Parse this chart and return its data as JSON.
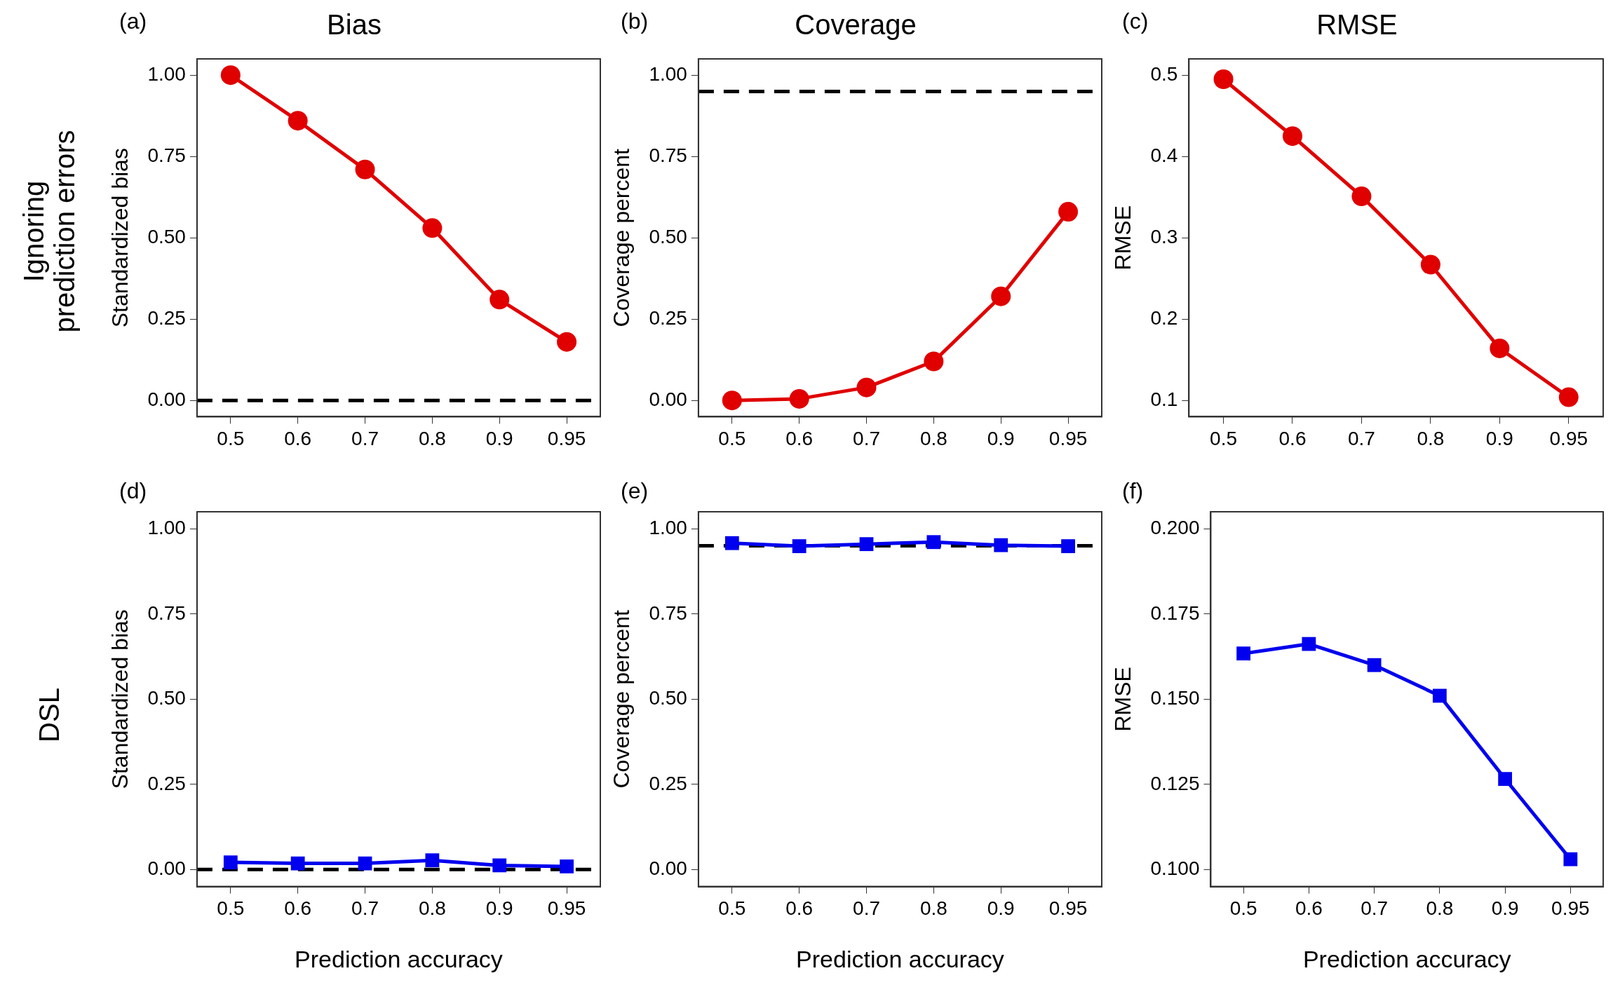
{
  "chart_data": [
    {
      "type": "line",
      "title": "Bias",
      "ylabel": "Standardized bias",
      "annotations": [
        "(a)",
        "Ignoring\nprediction errors"
      ],
      "categories": [
        "0.5",
        "0.6",
        "0.7",
        "0.8",
        "0.9",
        "0.95"
      ],
      "series": [
        {
          "color": "#e00000",
          "values": [
            1.0,
            0.86,
            0.71,
            0.53,
            0.31,
            0.18
          ]
        }
      ],
      "ylim": [
        -0.05,
        1.05
      ],
      "yticks": [
        {
          "value": 0,
          "label": "0.00"
        },
        {
          "value": 0.25,
          "label": "0.25"
        },
        {
          "value": 0.5,
          "label": "0.50"
        },
        {
          "value": 0.75,
          "label": "0.75"
        },
        {
          "value": 1,
          "label": "1.00"
        }
      ],
      "ref_lines": [
        {
          "axis": "y",
          "value": 0,
          "color": "#000000",
          "line_style": "dashed"
        }
      ],
      "grid": false,
      "legend": false,
      "marker": "circle",
      "line_style": "solid"
    },
    {
      "type": "line",
      "title": "Coverage",
      "ylabel": "Coverage percent",
      "annotations": [
        "(b)"
      ],
      "categories": [
        "0.5",
        "0.6",
        "0.7",
        "0.8",
        "0.9",
        "0.95"
      ],
      "series": [
        {
          "color": "#e00000",
          "values": [
            0.0,
            0.005,
            0.04,
            0.12,
            0.32,
            0.58
          ]
        }
      ],
      "ylim": [
        -0.05,
        1.05
      ],
      "yticks": [
        {
          "value": 0,
          "label": "0.00"
        },
        {
          "value": 0.25,
          "label": "0.25"
        },
        {
          "value": 0.5,
          "label": "0.50"
        },
        {
          "value": 0.75,
          "label": "0.75"
        },
        {
          "value": 1,
          "label": "1.00"
        }
      ],
      "ref_lines": [
        {
          "axis": "y",
          "value": 0.95,
          "color": "#000000",
          "line_style": "dashed"
        }
      ],
      "grid": false,
      "legend": false,
      "marker": "circle",
      "line_style": "solid"
    },
    {
      "type": "line",
      "title": "RMSE",
      "ylabel": "RMSE",
      "annotations": [
        "(c)"
      ],
      "categories": [
        "0.5",
        "0.6",
        "0.7",
        "0.8",
        "0.9",
        "0.95"
      ],
      "series": [
        {
          "color": "#e00000",
          "values": [
            0.495,
            0.425,
            0.351,
            0.267,
            0.164,
            0.104
          ]
        }
      ],
      "ylim": [
        0.08,
        0.52
      ],
      "yticks": [
        0.1,
        0.2,
        0.3,
        0.4,
        0.5
      ],
      "grid": false,
      "legend": false,
      "marker": "circle",
      "line_style": "solid"
    },
    {
      "type": "line",
      "xlabel": "Prediction accuracy",
      "ylabel": "Standardized bias",
      "annotations": [
        "(d)",
        "DSL"
      ],
      "categories": [
        "0.5",
        "0.6",
        "0.7",
        "0.8",
        "0.9",
        "0.95"
      ],
      "series": [
        {
          "color": "#0000ee",
          "values": [
            0.021,
            0.018,
            0.018,
            0.027,
            0.012,
            0.009
          ]
        }
      ],
      "ylim": [
        -0.05,
        1.05
      ],
      "yticks": [
        {
          "value": 0,
          "label": "0.00"
        },
        {
          "value": 0.25,
          "label": "0.25"
        },
        {
          "value": 0.5,
          "label": "0.50"
        },
        {
          "value": 0.75,
          "label": "0.75"
        },
        {
          "value": 1,
          "label": "1.00"
        }
      ],
      "ref_lines": [
        {
          "axis": "y",
          "value": 0,
          "color": "#000000",
          "line_style": "dashed"
        }
      ],
      "grid": false,
      "legend": false,
      "marker": "square",
      "line_style": "solid"
    },
    {
      "type": "line",
      "xlabel": "Prediction accuracy",
      "ylabel": "Coverage percent",
      "annotations": [
        "(e)"
      ],
      "categories": [
        "0.5",
        "0.6",
        "0.7",
        "0.8",
        "0.9",
        "0.95"
      ],
      "series": [
        {
          "color": "#0000ee",
          "values": [
            0.958,
            0.949,
            0.955,
            0.961,
            0.952,
            0.949
          ]
        }
      ],
      "ylim": [
        -0.05,
        1.05
      ],
      "yticks": [
        {
          "value": 0,
          "label": "0.00"
        },
        {
          "value": 0.25,
          "label": "0.25"
        },
        {
          "value": 0.5,
          "label": "0.50"
        },
        {
          "value": 0.75,
          "label": "0.75"
        },
        {
          "value": 1,
          "label": "1.00"
        }
      ],
      "ref_lines": [
        {
          "axis": "y",
          "value": 0.95,
          "color": "#000000",
          "line_style": "dashed"
        }
      ],
      "grid": false,
      "legend": false,
      "marker": "square",
      "line_style": "solid"
    },
    {
      "type": "line",
      "xlabel": "Prediction accuracy",
      "ylabel": "RMSE",
      "annotations": [
        "(f)"
      ],
      "categories": [
        "0.5",
        "0.6",
        "0.7",
        "0.8",
        "0.9",
        "0.95"
      ],
      "series": [
        {
          "color": "#0000ee",
          "values": [
            0.1634,
            0.1662,
            0.16,
            0.151,
            0.1266,
            0.103
          ]
        }
      ],
      "ylim": [
        0.095,
        0.205
      ],
      "yticks": [
        {
          "value": 0.1,
          "label": "0.100"
        },
        {
          "value": 0.125,
          "label": "0.125"
        },
        {
          "value": 0.15,
          "label": "0.150"
        },
        {
          "value": 0.175,
          "label": "0.175"
        },
        {
          "value": 0.2,
          "label": "0.200"
        }
      ],
      "grid": false,
      "legend": false,
      "marker": "square",
      "line_style": "solid"
    }
  ]
}
